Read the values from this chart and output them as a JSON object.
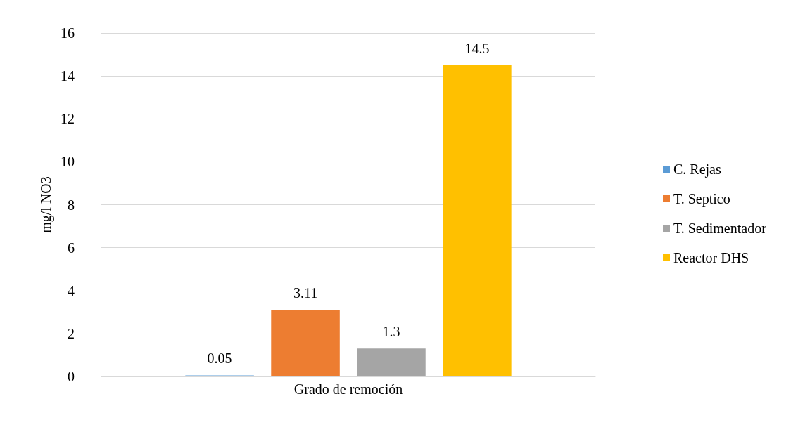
{
  "chart_data": {
    "type": "bar",
    "ylabel": "mg/l NO3",
    "categories": [
      "Grado de remoción"
    ],
    "series": [
      {
        "name": "C. Rejas",
        "color": "#5b9bd5",
        "values": [
          0.05
        ]
      },
      {
        "name": "T. Septico",
        "color": "#ed7d31",
        "values": [
          3.11
        ]
      },
      {
        "name": "T. Sedimentador",
        "color": "#a5a5a5",
        "values": [
          1.3
        ]
      },
      {
        "name": "Reactor DHS",
        "color": "#ffc000",
        "values": [
          14.5
        ]
      }
    ],
    "ylim": [
      0,
      16
    ],
    "yticks": [
      0,
      2,
      4,
      6,
      8,
      10,
      12,
      14,
      16
    ],
    "grid": "y",
    "legend": "right",
    "data_labels": true
  }
}
